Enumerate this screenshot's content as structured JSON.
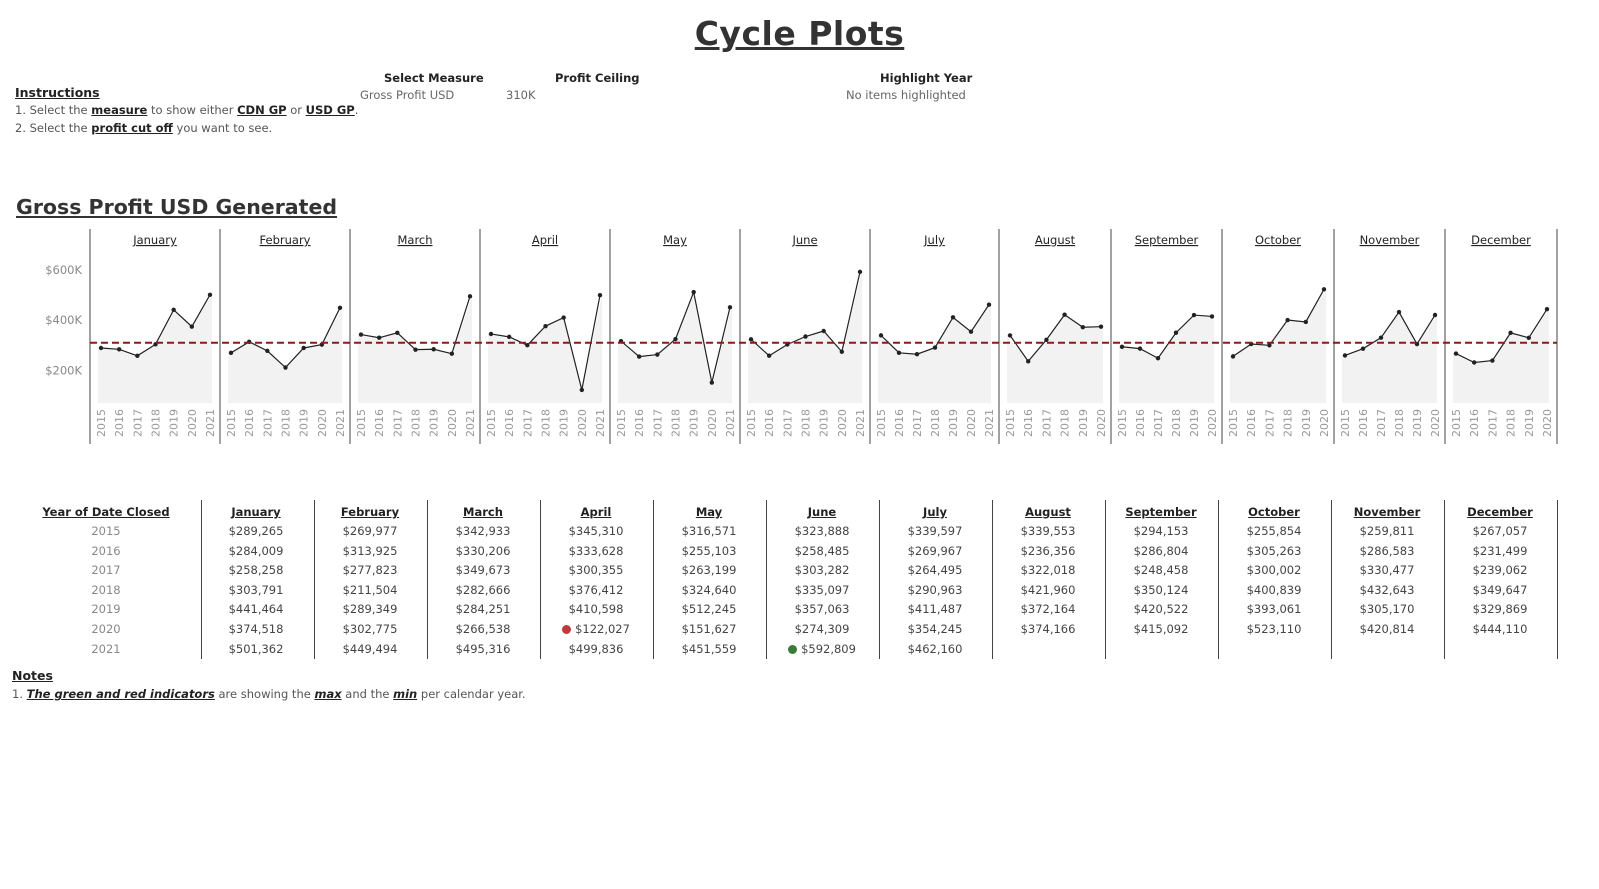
{
  "title": "Cycle Plots",
  "instructions": {
    "heading": "Instructions",
    "line1": {
      "p1": "1. Select the ",
      "k1": "measure",
      "p2": " to show either ",
      "k2": "CDN GP",
      "p3": " or ",
      "k3": "USD GP",
      "p4": "."
    },
    "line2": {
      "p1": "2. Select the ",
      "k1": "profit cut off",
      "p2": " you want to see."
    }
  },
  "controls": {
    "measure": {
      "label": "Select Measure",
      "value": "Gross Profit USD"
    },
    "ceiling": {
      "label": "Profit Ceiling",
      "value": "310K"
    },
    "highlight": {
      "label": "Highlight Year",
      "value": "No items highlighted"
    }
  },
  "section_title": "Gross Profit USD Generated",
  "colors": {
    "line": "#222222",
    "area": "#f2f2f2",
    "reference": "#8b1a1a",
    "min_indicator": "#c0393b",
    "max_indicator": "#3a7a3a"
  },
  "chart_data": {
    "type": "line",
    "ylim": [
      70000,
      680000
    ],
    "yticks": [
      {
        "value": 200000,
        "label": "$200K"
      },
      {
        "value": 400000,
        "label": "$400K"
      },
      {
        "value": 600000,
        "label": "$600K"
      }
    ],
    "reference_line": 310000,
    "years": [
      "2015",
      "2016",
      "2017",
      "2018",
      "2019",
      "2020",
      "2021"
    ],
    "series": [
      {
        "month": "January",
        "years": [
          "2015",
          "2016",
          "2017",
          "2018",
          "2019",
          "2020",
          "2021"
        ],
        "values": [
          289265,
          284009,
          258258,
          303791,
          441464,
          374518,
          501362
        ]
      },
      {
        "month": "February",
        "years": [
          "2015",
          "2016",
          "2017",
          "2018",
          "2019",
          "2020",
          "2021"
        ],
        "values": [
          269977,
          313925,
          277823,
          211504,
          289349,
          302775,
          449494
        ]
      },
      {
        "month": "March",
        "years": [
          "2015",
          "2016",
          "2017",
          "2018",
          "2019",
          "2020",
          "2021"
        ],
        "values": [
          342933,
          330206,
          349673,
          282666,
          284251,
          266538,
          495316
        ]
      },
      {
        "month": "April",
        "years": [
          "2015",
          "2016",
          "2017",
          "2018",
          "2019",
          "2020",
          "2021"
        ],
        "values": [
          345310,
          333628,
          300355,
          376412,
          410598,
          122027,
          499836
        ]
      },
      {
        "month": "May",
        "years": [
          "2015",
          "2016",
          "2017",
          "2018",
          "2019",
          "2020",
          "2021"
        ],
        "values": [
          316571,
          255103,
          263199,
          324640,
          512245,
          151627,
          451559
        ]
      },
      {
        "month": "June",
        "years": [
          "2015",
          "2016",
          "2017",
          "2018",
          "2019",
          "2020",
          "2021"
        ],
        "values": [
          323888,
          258485,
          303282,
          335097,
          357063,
          274309,
          592809
        ]
      },
      {
        "month": "July",
        "years": [
          "2015",
          "2016",
          "2017",
          "2018",
          "2019",
          "2020",
          "2021"
        ],
        "values": [
          339597,
          269967,
          264495,
          290963,
          411487,
          354245,
          462160
        ]
      },
      {
        "month": "August",
        "years": [
          "2015",
          "2016",
          "2017",
          "2018",
          "2019",
          "2020"
        ],
        "values": [
          339553,
          236356,
          322018,
          421960,
          372164,
          374166
        ]
      },
      {
        "month": "September",
        "years": [
          "2015",
          "2016",
          "2017",
          "2018",
          "2019",
          "2020"
        ],
        "values": [
          294153,
          286804,
          248458,
          350124,
          420522,
          415092
        ]
      },
      {
        "month": "October",
        "years": [
          "2015",
          "2016",
          "2017",
          "2018",
          "2019",
          "2020"
        ],
        "values": [
          255854,
          305263,
          300002,
          400839,
          393061,
          523110
        ]
      },
      {
        "month": "November",
        "years": [
          "2015",
          "2016",
          "2017",
          "2018",
          "2019",
          "2020"
        ],
        "values": [
          259811,
          286583,
          330477,
          432643,
          305170,
          420814
        ]
      },
      {
        "month": "December",
        "years": [
          "2015",
          "2016",
          "2017",
          "2018",
          "2019",
          "2020"
        ],
        "values": [
          267057,
          231499,
          239062,
          349647,
          329869,
          444110
        ]
      }
    ]
  },
  "table": {
    "row_header": "Year of Date Closed",
    "months": [
      "January",
      "February",
      "March",
      "April",
      "May",
      "June",
      "July",
      "August",
      "September",
      "October",
      "November",
      "December"
    ],
    "rows": [
      {
        "year": "2015",
        "cells": [
          "$289,265",
          "$269,977",
          "$342,933",
          "$345,310",
          "$316,571",
          "$323,888",
          "$339,597",
          "$339,553",
          "$294,153",
          "$255,854",
          "$259,811",
          "$267,057"
        ]
      },
      {
        "year": "2016",
        "cells": [
          "$284,009",
          "$313,925",
          "$330,206",
          "$333,628",
          "$255,103",
          "$258,485",
          "$269,967",
          "$236,356",
          "$286,804",
          "$305,263",
          "$286,583",
          "$231,499"
        ]
      },
      {
        "year": "2017",
        "cells": [
          "$258,258",
          "$277,823",
          "$349,673",
          "$300,355",
          "$263,199",
          "$303,282",
          "$264,495",
          "$322,018",
          "$248,458",
          "$300,002",
          "$330,477",
          "$239,062"
        ]
      },
      {
        "year": "2018",
        "cells": [
          "$303,791",
          "$211,504",
          "$282,666",
          "$376,412",
          "$324,640",
          "$335,097",
          "$290,963",
          "$421,960",
          "$350,124",
          "$400,839",
          "$432,643",
          "$349,647"
        ]
      },
      {
        "year": "2019",
        "cells": [
          "$441,464",
          "$289,349",
          "$284,251",
          "$410,598",
          "$512,245",
          "$357,063",
          "$411,487",
          "$372,164",
          "$420,522",
          "$393,061",
          "$305,170",
          "$329,869"
        ]
      },
      {
        "year": "2020",
        "cells": [
          "$374,518",
          "$302,775",
          "$266,538",
          "$122,027",
          "$151,627",
          "$274,309",
          "$354,245",
          "$374,166",
          "$415,092",
          "$523,110",
          "$420,814",
          "$444,110"
        ]
      },
      {
        "year": "2021",
        "cells": [
          "$501,362",
          "$449,494",
          "$495,316",
          "$499,836",
          "$451,559",
          "$592,809",
          "$462,160",
          "",
          "",
          "",
          "",
          ""
        ]
      }
    ],
    "indicators": [
      {
        "row": 5,
        "col": 3,
        "kind": "min"
      },
      {
        "row": 6,
        "col": 5,
        "kind": "max"
      }
    ]
  },
  "notes": {
    "heading": "Notes",
    "p1": "1. ",
    "k1": "The green and red indicators",
    "p2": "  are showing the ",
    "k2": "max",
    "p3": "  and the ",
    "k3": "min",
    "p4": "  per calendar year."
  }
}
